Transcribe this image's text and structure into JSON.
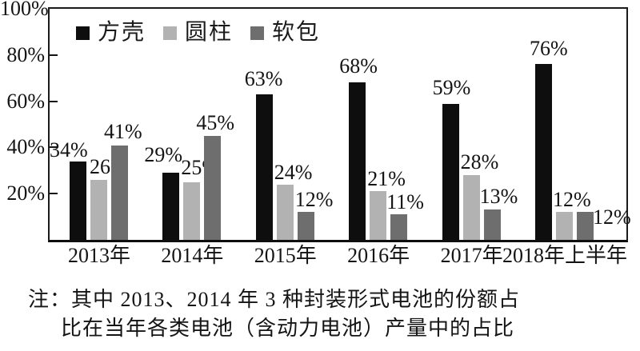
{
  "figure": {
    "note_prefix": "注：",
    "note_line1": "其中 2013、2014 年 3 种封装形式电池的份额占",
    "note_line2": "比在当年各类电池（含动力电池）产量中的占比"
  },
  "chart_data": {
    "type": "bar",
    "title": "",
    "categories": [
      "2013年",
      "2014年",
      "2015年",
      "2016年",
      "2017年",
      "2018年上半年"
    ],
    "series": [
      {
        "name": "方壳",
        "slug": "prismatic",
        "color": "#0e0e0e",
        "values": [
          34,
          29,
          63,
          68,
          59,
          76
        ]
      },
      {
        "name": "圆柱",
        "slug": "cylindrical",
        "color": "#b2b2b2",
        "values": [
          26,
          25,
          24,
          21,
          28,
          12
        ]
      },
      {
        "name": "软包",
        "slug": "pouch",
        "color": "#6e6e6e",
        "values": [
          41,
          45,
          12,
          11,
          13,
          12
        ]
      }
    ],
    "unit": "%",
    "ylim": [
      0,
      100
    ],
    "y_ticks": [
      100,
      80,
      60,
      40,
      20
    ],
    "y_tick_labels": [
      "100%",
      "80%",
      "60%",
      "40%",
      "20%"
    ],
    "grid": false,
    "legend_position": "top-left-inside",
    "bar_label_format": "{v}%",
    "label_offsets": [
      [
        [
          -25,
          1
        ],
        [
          -23,
          9
        ],
        [
          -14,
          6
        ],
        [
          -12,
          7
        ],
        [
          -12,
          7
        ],
        [
          -7,
          6
        ]
      ],
      [
        [
          -1,
          3
        ],
        [
          -3,
          5
        ],
        [
          -3,
          2
        ],
        [
          -3,
          2
        ],
        [
          -3,
          3
        ],
        [
          -4,
          2
        ]
      ],
      [
        [
          -9,
          4
        ],
        [
          -10,
          3
        ],
        [
          -3,
          2
        ],
        [
          -5,
          2
        ],
        [
          -5,
          3
        ],
        [
          20,
          -20
        ]
      ]
    ]
  }
}
